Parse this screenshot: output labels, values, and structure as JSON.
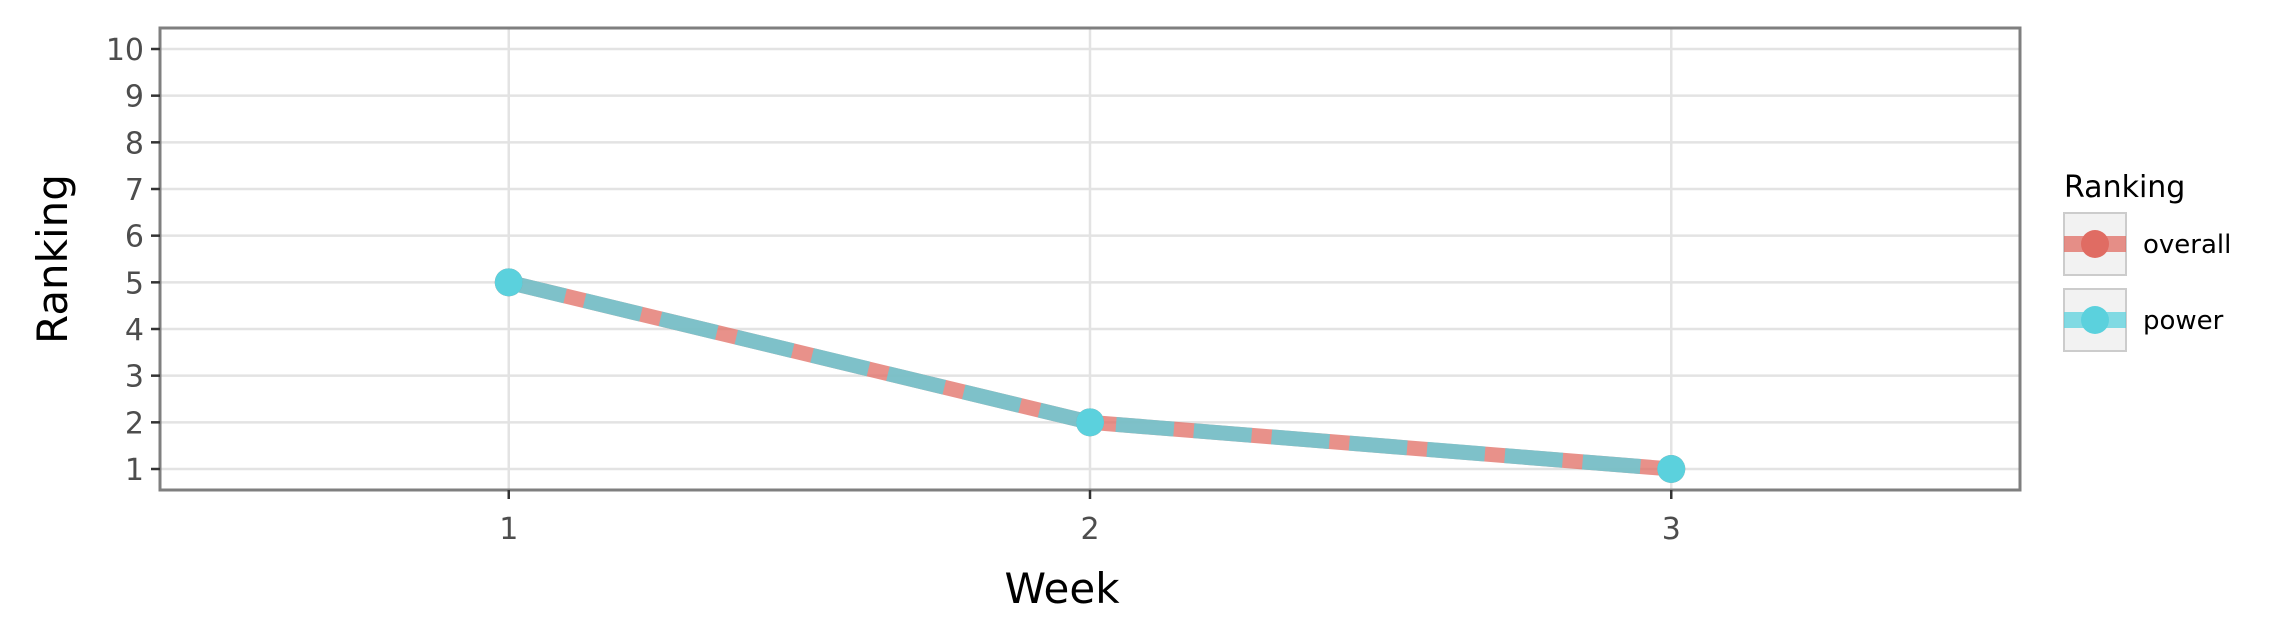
{
  "chart_data": {
    "type": "line",
    "xlabel": "Week",
    "ylabel": "Ranking",
    "x": [
      1,
      2,
      3
    ],
    "xlim": [
      0.4,
      3.6
    ],
    "ylim": [
      10.45,
      0.55
    ],
    "y_reversed": true,
    "x_ticks": [
      1,
      2,
      3
    ],
    "y_ticks": [
      1,
      2,
      3,
      4,
      5,
      6,
      7,
      8,
      9,
      10
    ],
    "grid": true,
    "legend": {
      "title": "Ranking",
      "position": "right",
      "entries": [
        "overall",
        "power"
      ]
    },
    "series": [
      {
        "name": "overall",
        "values": [
          5,
          2,
          1
        ],
        "color": "#e06c63"
      },
      {
        "name": "power",
        "values": [
          5,
          2,
          1
        ],
        "color": "#5bd1dd"
      }
    ]
  }
}
